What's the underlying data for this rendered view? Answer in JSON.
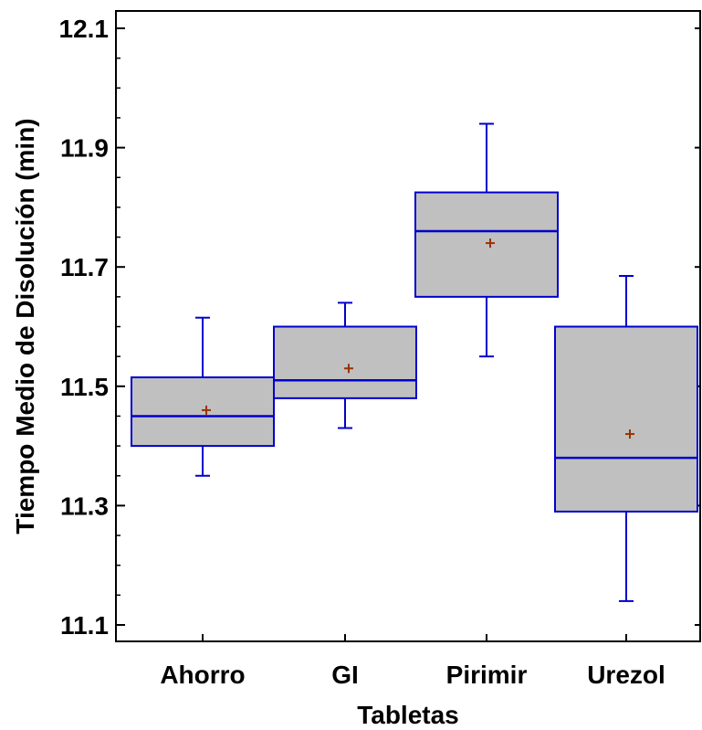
{
  "chart_data": {
    "type": "box",
    "xlabel": "Tabletas",
    "ylabel": "Tiempo Medio de Disolución (min)",
    "ylim": [
      11.03,
      12.13
    ],
    "yticks": [
      11.1,
      11.3,
      11.5,
      11.7,
      11.9,
      12.1
    ],
    "ytick_labels": [
      "11.1",
      "11.3",
      "11.5",
      "11.7",
      "11.9",
      "12.1"
    ],
    "grid": false,
    "colors": {
      "box_fill": "#c0c0c0",
      "box_stroke": "#0000cc",
      "mean_marker": "#993300"
    },
    "categories": [
      "Ahorro",
      "GI",
      "Pirimir",
      "Urezol"
    ],
    "boxes": [
      {
        "name": "Ahorro",
        "min": 11.35,
        "q1": 11.4,
        "median": 11.45,
        "q3": 11.515,
        "max": 11.615,
        "mean": 11.46
      },
      {
        "name": "GI",
        "min": 11.43,
        "q1": 11.48,
        "median": 11.51,
        "q3": 11.6,
        "max": 11.64,
        "mean": 11.53
      },
      {
        "name": "Pirimir",
        "min": 11.55,
        "q1": 11.65,
        "median": 11.76,
        "q3": 11.825,
        "max": 11.94,
        "mean": 11.74
      },
      {
        "name": "Urezol",
        "min": 11.14,
        "q1": 11.29,
        "median": 11.38,
        "q3": 11.6,
        "max": 11.685,
        "mean": 11.42
      }
    ]
  }
}
